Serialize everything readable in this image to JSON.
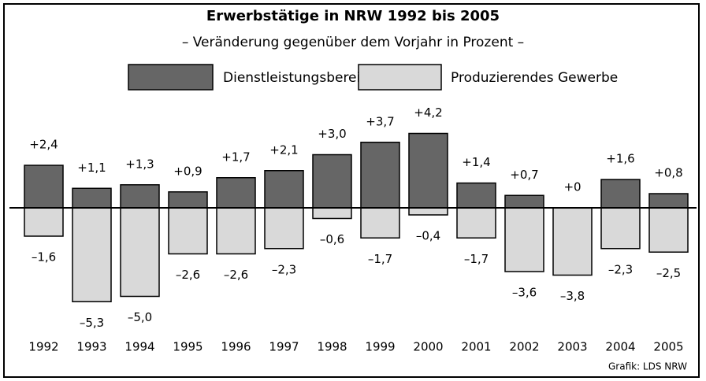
{
  "chart_data": {
    "type": "bar",
    "title": "Erwerbstätige in NRW 1992 bis 2005",
    "subtitle": "– Veränderung gegenüber dem Vorjahr in Prozent –",
    "source": "Grafik: LDS NRW",
    "categories": [
      "1992",
      "1993",
      "1994",
      "1995",
      "1996",
      "1997",
      "1998",
      "1999",
      "2000",
      "2001",
      "2002",
      "2003",
      "2004",
      "2005"
    ],
    "series": [
      {
        "name": "Dienstleistungsbereiche",
        "color": "#666666",
        "values": [
          2.4,
          1.1,
          1.3,
          0.9,
          1.7,
          2.1,
          3.0,
          3.7,
          4.2,
          1.4,
          0.7,
          0,
          1.6,
          0.8
        ],
        "value_labels": [
          "+2,4",
          "+1,1",
          "+1,3",
          "+0,9",
          "+1,7",
          "+2,1",
          "+3,0",
          "+3,7",
          "+4,2",
          "+1,4",
          "+0,7",
          "+0",
          "+1,6",
          "+0,8"
        ]
      },
      {
        "name": "Produzierendes Gewerbe",
        "color": "#d9d9d9",
        "values": [
          -1.6,
          -5.3,
          -5.0,
          -2.6,
          -2.6,
          -2.3,
          -0.6,
          -1.7,
          -0.4,
          -1.7,
          -3.6,
          -3.8,
          -2.3,
          -2.5
        ],
        "value_labels": [
          "–1,6",
          "–5,3",
          "–5,0",
          "–2,6",
          "–2,6",
          "–2,3",
          "–0,6",
          "–1,7",
          "–0,4",
          "–1,7",
          "–3,6",
          "–3,8",
          "–2,3",
          "–2,5"
        ]
      }
    ],
    "ylim": [
      -6,
      5
    ]
  }
}
